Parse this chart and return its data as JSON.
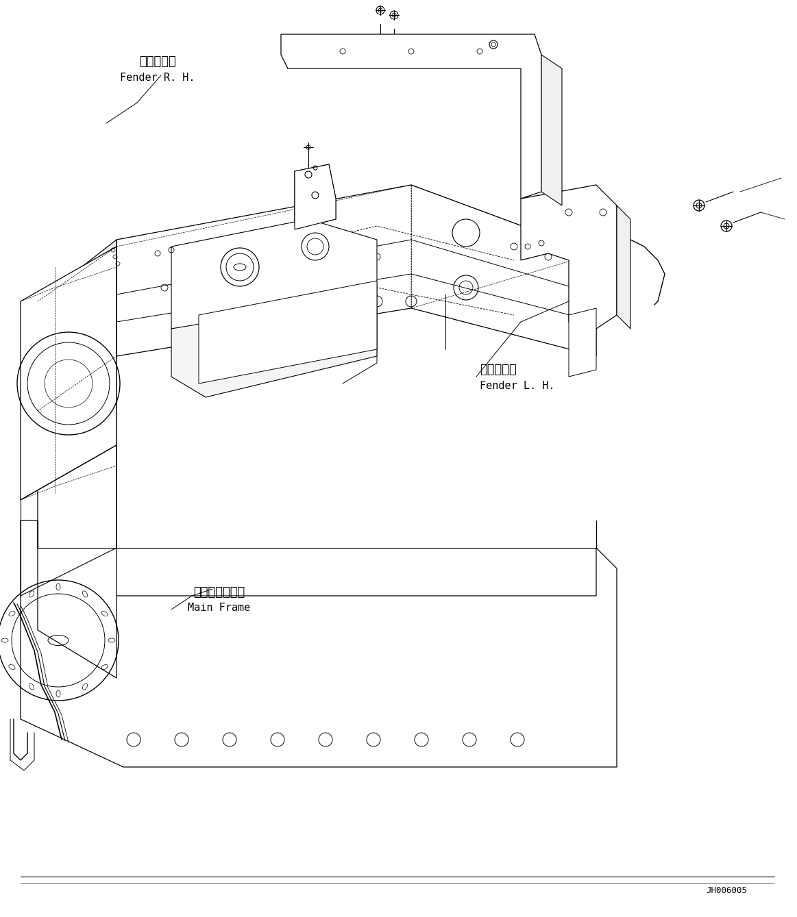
{
  "title": "",
  "bg_color": "#ffffff",
  "line_color": "#000000",
  "label_fender_rh_jp": "フェンダ右",
  "label_fender_rh_en": "Fender R. H.",
  "label_fender_lh_jp": "フェンダ左",
  "label_fender_lh_en": "Fender L. H.",
  "label_main_frame_jp": "メインフレーム",
  "label_main_frame_en": "Main Frame",
  "code": "JH006005",
  "fig_width": 11.63,
  "fig_height": 13.39
}
